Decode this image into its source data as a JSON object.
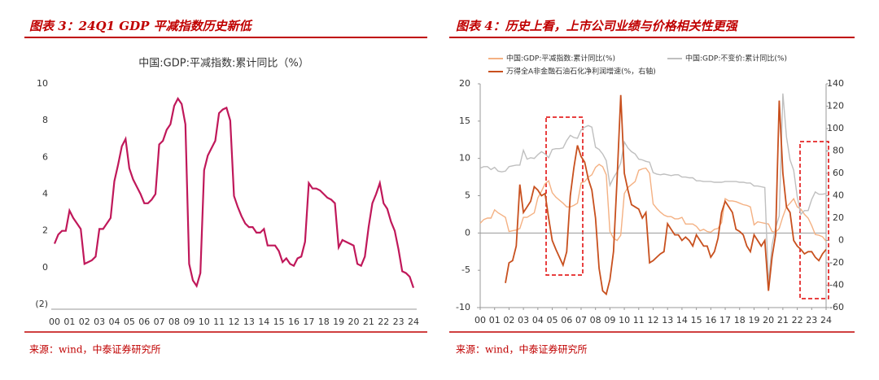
{
  "chart_data": [
    {
      "type": "line",
      "caption": "图表 3：24Q1 GDP 平减指数历史新低",
      "title": "中国:GDP:平减指数:累计同比（%）",
      "source": "来源：wind，中泰证券研究所",
      "x": [
        2000,
        2000.25,
        2000.5,
        2000.75,
        2001,
        2001.25,
        2001.5,
        2001.75,
        2002,
        2002.25,
        2002.5,
        2002.75,
        2003,
        2003.25,
        2003.5,
        2003.75,
        2004,
        2004.25,
        2004.5,
        2004.75,
        2005,
        2005.25,
        2005.5,
        2005.75,
        2006,
        2006.25,
        2006.5,
        2006.75,
        2007,
        2007.25,
        2007.5,
        2007.75,
        2008,
        2008.25,
        2008.5,
        2008.75,
        2009,
        2009.25,
        2009.5,
        2009.75,
        2010,
        2010.25,
        2010.5,
        2010.75,
        2011,
        2011.25,
        2011.5,
        2011.75,
        2012,
        2012.25,
        2012.5,
        2012.75,
        2013,
        2013.25,
        2013.5,
        2013.75,
        2014,
        2014.25,
        2014.5,
        2014.75,
        2015,
        2015.25,
        2015.5,
        2015.75,
        2016,
        2016.25,
        2016.5,
        2016.75,
        2017,
        2017.25,
        2017.5,
        2017.75,
        2018,
        2018.25,
        2018.5,
        2018.75,
        2019,
        2019.25,
        2019.5,
        2019.75,
        2020,
        2020.25,
        2020.5,
        2020.75,
        2021,
        2021.25,
        2021.5,
        2021.75,
        2022,
        2022.25,
        2022.5,
        2022.75,
        2023,
        2023.25,
        2023.5,
        2023.75,
        2024
      ],
      "series": [
        {
          "name": "中国:GDP:平减指数:累计同比（%）",
          "color": "#c0185a",
          "values": [
            1.3,
            1.8,
            2.0,
            2.0,
            3.1,
            2.7,
            2.4,
            2.1,
            0.2,
            0.3,
            0.4,
            0.6,
            2.1,
            2.1,
            2.4,
            2.7,
            4.7,
            5.6,
            6.6,
            7.0,
            5.4,
            4.8,
            4.4,
            4.0,
            3.5,
            3.5,
            3.7,
            4.0,
            6.7,
            6.9,
            7.5,
            7.8,
            8.8,
            9.2,
            8.9,
            7.8,
            0.2,
            -0.7,
            -1.0,
            -0.3,
            5.3,
            6.1,
            6.5,
            6.9,
            8.4,
            8.6,
            8.7,
            8.0,
            3.9,
            3.3,
            2.8,
            2.4,
            2.2,
            2.2,
            1.9,
            1.9,
            2.1,
            1.2,
            1.2,
            1.2,
            0.9,
            0.3,
            0.5,
            0.2,
            0.1,
            0.5,
            0.6,
            1.4,
            4.6,
            4.3,
            4.3,
            4.2,
            4.0,
            3.8,
            3.7,
            3.5,
            1.1,
            1.5,
            1.4,
            1.3,
            1.2,
            0.2,
            0.1,
            0.6,
            2.2,
            3.5,
            4.0,
            4.6,
            3.5,
            3.2,
            2.5,
            2.0,
            1.0,
            -0.2,
            -0.3,
            -0.5,
            -1.1
          ]
        }
      ],
      "xlim": [
        2000,
        2024
      ],
      "xticks": [
        {
          "value": 2000,
          "label": "00"
        },
        {
          "value": 2001,
          "label": "01"
        },
        {
          "value": 2002,
          "label": "02"
        },
        {
          "value": 2003,
          "label": "03"
        },
        {
          "value": 2004,
          "label": "04"
        },
        {
          "value": 2005,
          "label": "05"
        },
        {
          "value": 2006,
          "label": "06"
        },
        {
          "value": 2007,
          "label": "07"
        },
        {
          "value": 2008,
          "label": "08"
        },
        {
          "value": 2009,
          "label": "09"
        },
        {
          "value": 2010,
          "label": "10"
        },
        {
          "value": 2011,
          "label": "11"
        },
        {
          "value": 2012,
          "label": "12"
        },
        {
          "value": 2013,
          "label": "13"
        },
        {
          "value": 2014,
          "label": "14"
        },
        {
          "value": 2015,
          "label": "15"
        },
        {
          "value": 2016,
          "label": "16"
        },
        {
          "value": 2017,
          "label": "17"
        },
        {
          "value": 2018,
          "label": "18"
        },
        {
          "value": 2019,
          "label": "19"
        },
        {
          "value": 2020,
          "label": "20"
        },
        {
          "value": 2021,
          "label": "21"
        },
        {
          "value": 2022,
          "label": "22"
        },
        {
          "value": 2023,
          "label": "23"
        },
        {
          "value": 2024,
          "label": "24"
        }
      ],
      "ylim": [
        -2,
        10
      ],
      "yticks": [
        {
          "value": -2,
          "label": "(2)"
        },
        0,
        2,
        4,
        6,
        8,
        10
      ]
    },
    {
      "type": "line",
      "caption": "图表 4：历史上看，上市公司业绩与价格相关性更强",
      "source": "来源：wind，中泰证券研究所",
      "x": [
        2000,
        2000.25,
        2000.5,
        2000.75,
        2001,
        2001.25,
        2001.5,
        2001.75,
        2002,
        2002.25,
        2002.5,
        2002.75,
        2003,
        2003.25,
        2003.5,
        2003.75,
        2004,
        2004.25,
        2004.5,
        2004.75,
        2005,
        2005.25,
        2005.5,
        2005.75,
        2006,
        2006.25,
        2006.5,
        2006.75,
        2007,
        2007.25,
        2007.5,
        2007.75,
        2008,
        2008.25,
        2008.5,
        2008.75,
        2009,
        2009.25,
        2009.5,
        2009.75,
        2010,
        2010.25,
        2010.5,
        2010.75,
        2011,
        2011.25,
        2011.5,
        2011.75,
        2012,
        2012.25,
        2012.5,
        2012.75,
        2013,
        2013.25,
        2013.5,
        2013.75,
        2014,
        2014.25,
        2014.5,
        2014.75,
        2015,
        2015.25,
        2015.5,
        2015.75,
        2016,
        2016.25,
        2016.5,
        2016.75,
        2017,
        2017.25,
        2017.5,
        2017.75,
        2018,
        2018.25,
        2018.5,
        2018.75,
        2019,
        2019.25,
        2019.5,
        2019.75,
        2020,
        2020.25,
        2020.5,
        2020.75,
        2021,
        2021.25,
        2021.5,
        2021.75,
        2022,
        2022.25,
        2022.5,
        2022.75,
        2023,
        2023.25,
        2023.5,
        2023.75,
        2024
      ],
      "series": [
        {
          "name": "中国:GDP:平减指数:累计同比(%)",
          "color": "#f4b183",
          "values": [
            1.3,
            1.8,
            2.0,
            2.0,
            3.1,
            2.7,
            2.4,
            2.1,
            0.2,
            0.3,
            0.4,
            0.6,
            2.1,
            2.1,
            2.4,
            2.7,
            4.7,
            5.6,
            6.6,
            7.0,
            5.4,
            4.8,
            4.4,
            4.0,
            3.5,
            3.5,
            3.7,
            4.0,
            6.7,
            6.9,
            7.5,
            7.8,
            8.8,
            9.2,
            8.9,
            7.8,
            0.2,
            -0.7,
            -1.0,
            -0.3,
            5.3,
            6.1,
            6.5,
            6.9,
            8.4,
            8.6,
            8.7,
            8.0,
            3.9,
            3.3,
            2.8,
            2.4,
            2.2,
            2.2,
            1.9,
            1.9,
            2.1,
            1.2,
            1.2,
            1.2,
            0.9,
            0.3,
            0.5,
            0.2,
            0.1,
            0.5,
            0.6,
            1.4,
            4.6,
            4.3,
            4.3,
            4.2,
            4.0,
            3.8,
            3.7,
            3.5,
            1.1,
            1.5,
            1.4,
            1.3,
            1.2,
            0.2,
            0.1,
            0.6,
            2.2,
            3.5,
            4.0,
            4.6,
            3.5,
            3.2,
            2.5,
            2.0,
            1.0,
            -0.2,
            -0.3,
            -0.5,
            -1.1
          ]
        },
        {
          "name": "中国:GDP:不变价:累计同比(%)",
          "color": "#bfbfbf",
          "values": [
            8.7,
            8.9,
            8.9,
            8.5,
            8.8,
            8.3,
            8.2,
            8.3,
            8.9,
            9.0,
            9.1,
            9.1,
            11.1,
            9.9,
            10.1,
            10.0,
            10.5,
            10.9,
            10.6,
            10.1,
            11.2,
            11.3,
            11.3,
            11.4,
            12.4,
            13.1,
            12.8,
            12.7,
            13.8,
            14.2,
            14.4,
            14.2,
            11.5,
            11.2,
            10.6,
            9.7,
            6.4,
            7.4,
            8.2,
            9.4,
            12.2,
            11.4,
            10.9,
            10.6,
            9.9,
            9.8,
            9.6,
            9.5,
            8.1,
            7.9,
            7.8,
            7.9,
            7.8,
            7.7,
            7.8,
            7.8,
            7.5,
            7.5,
            7.4,
            7.4,
            7.0,
            7.0,
            6.9,
            6.9,
            6.9,
            6.8,
            6.8,
            6.8,
            6.9,
            6.9,
            6.9,
            6.9,
            6.8,
            6.8,
            6.7,
            6.7,
            6.3,
            6.3,
            6.2,
            6.1,
            -6.8,
            -1.6,
            0.7,
            2.3,
            18.7,
            12.9,
            9.8,
            8.4,
            4.8,
            2.5,
            3.0,
            3.0,
            4.5,
            5.5,
            5.2,
            5.2,
            5.3
          ]
        },
        {
          "name": "万得全A非金融石油石化净利润增速(%，右轴)",
          "color": "#c8501e",
          "axis": "y2",
          "values": [
            null,
            null,
            null,
            null,
            null,
            null,
            null,
            -38,
            -20,
            -18,
            -5,
            50,
            25,
            30,
            35,
            48,
            45,
            40,
            42,
            20,
            0,
            -8,
            -15,
            -22,
            -10,
            40,
            65,
            85,
            75,
            70,
            55,
            45,
            20,
            -25,
            -45,
            -48,
            -35,
            -10,
            55,
            130,
            60,
            45,
            32,
            30,
            28,
            20,
            25,
            -20,
            -18,
            -15,
            -12,
            -10,
            15,
            10,
            5,
            5,
            0,
            3,
            0,
            -5,
            5,
            0,
            -5,
            -5,
            -15,
            -10,
            2,
            25,
            35,
            30,
            25,
            10,
            8,
            5,
            -5,
            -10,
            5,
            0,
            -5,
            0,
            -45,
            -15,
            5,
            125,
            60,
            30,
            25,
            0,
            -5,
            -8,
            -12,
            -10,
            -10,
            -15,
            -18,
            -12,
            -8
          ]
        }
      ],
      "xlim": [
        2000,
        2024
      ],
      "xticks": [
        {
          "value": 2000,
          "label": "00"
        },
        {
          "value": 2001,
          "label": "01"
        },
        {
          "value": 2002,
          "label": "02"
        },
        {
          "value": 2003,
          "label": "03"
        },
        {
          "value": 2004,
          "label": "04"
        },
        {
          "value": 2005,
          "label": "05"
        },
        {
          "value": 2006,
          "label": "06"
        },
        {
          "value": 2007,
          "label": "07"
        },
        {
          "value": 2008,
          "label": "08"
        },
        {
          "value": 2009,
          "label": "09"
        },
        {
          "value": 2010,
          "label": "10"
        },
        {
          "value": 2011,
          "label": "11"
        },
        {
          "value": 2012,
          "label": "12"
        },
        {
          "value": 2013,
          "label": "13"
        },
        {
          "value": 2014,
          "label": "14"
        },
        {
          "value": 2015,
          "label": "15"
        },
        {
          "value": 2016,
          "label": "16"
        },
        {
          "value": 2017,
          "label": "17"
        },
        {
          "value": 2018,
          "label": "18"
        },
        {
          "value": 2019,
          "label": "19"
        },
        {
          "value": 2020,
          "label": "20"
        },
        {
          "value": 2021,
          "label": "21"
        },
        {
          "value": 2022,
          "label": "22"
        },
        {
          "value": 2023,
          "label": "23"
        },
        {
          "value": 2024,
          "label": "24"
        }
      ],
      "ylim": [
        -10,
        20
      ],
      "yticks": [
        -10,
        -5,
        0,
        5,
        10,
        15,
        20
      ],
      "y2lim": [
        -60,
        140
      ],
      "y2ticks": [
        -60,
        -40,
        -20,
        0,
        20,
        40,
        60,
        80,
        100,
        120,
        140
      ],
      "legend": "top"
    }
  ]
}
